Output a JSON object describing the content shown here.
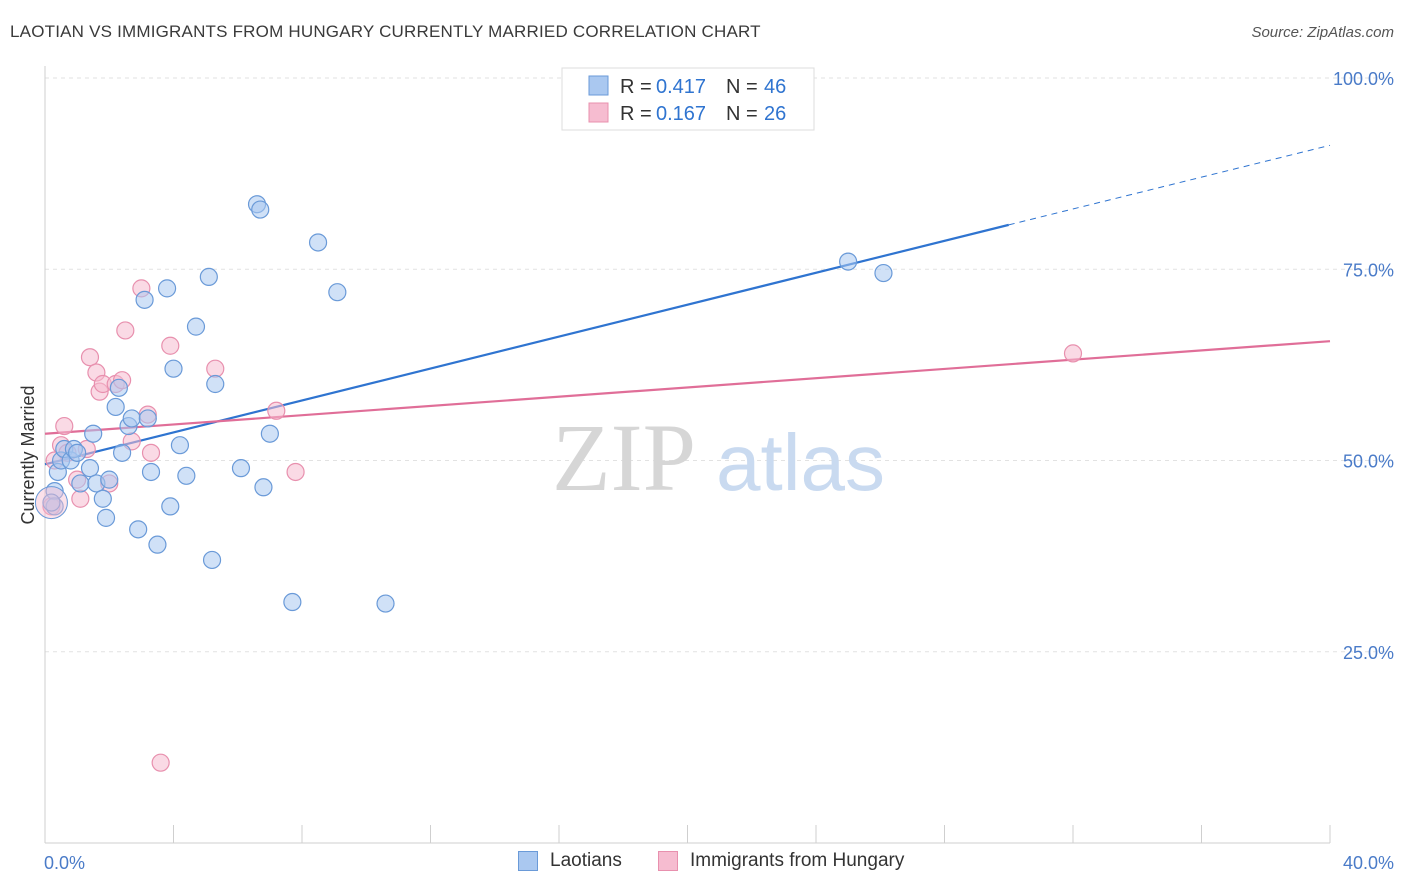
{
  "title": "LAOTIAN VS IMMIGRANTS FROM HUNGARY CURRENTLY MARRIED CORRELATION CHART",
  "source": "Source: ZipAtlas.com",
  "watermark": {
    "zip": "ZIP",
    "atlas": "atlas"
  },
  "colors": {
    "blue_fill": "#aac8f0",
    "blue_stroke": "#6a9ad8",
    "blue_line": "#2f74d0",
    "pink_fill": "#f6bcd0",
    "pink_stroke": "#e890ae",
    "pink_line": "#e06e98",
    "axis_text": "#4a7bc8",
    "grid": "#e2e2e2"
  },
  "legend": [
    {
      "r_label": "R = ",
      "r_value": "0.417",
      "n_label": "N = ",
      "n_value": "46"
    },
    {
      "r_label": "R = ",
      "r_value": "0.167",
      "n_label": "N = ",
      "n_value": "26"
    }
  ],
  "bottom_legend": [
    "Laotians",
    "Immigrants from Hungary"
  ],
  "chart_data": {
    "type": "scatter",
    "title": "LAOTIAN VS IMMIGRANTS FROM HUNGARY CURRENTLY MARRIED CORRELATION CHART",
    "xlabel": "",
    "ylabel": "Currently Married",
    "xlim": [
      0,
      40
    ],
    "ylim": [
      0,
      100
    ],
    "x_tick_labels": [
      "0.0%",
      "40.0%"
    ],
    "y_ticks": [
      25,
      50,
      75,
      100
    ],
    "y_tick_labels": [
      "25.0%",
      "50.0%",
      "75.0%",
      "100.0%"
    ],
    "grid": true,
    "legend_position": "top-center",
    "series": [
      {
        "name": "Laotians",
        "r": 0.417,
        "n": 46,
        "trend": {
          "x0": 0,
          "y0": 49.5,
          "x1": 30,
          "y1": 80.8,
          "dash_to_x": 40,
          "dash_to_y": 91.2
        },
        "points": [
          [
            0.3,
            46
          ],
          [
            0.3,
            44
          ],
          [
            0.4,
            48.5
          ],
          [
            0.5,
            50
          ],
          [
            0.6,
            51.5
          ],
          [
            0.8,
            50
          ],
          [
            0.9,
            51.5
          ],
          [
            1.0,
            51
          ],
          [
            1.1,
            47
          ],
          [
            1.4,
            49
          ],
          [
            1.5,
            53.5
          ],
          [
            1.6,
            47
          ],
          [
            1.8,
            45
          ],
          [
            1.9,
            42.5
          ],
          [
            2.0,
            47.5
          ],
          [
            2.2,
            57
          ],
          [
            2.3,
            59.5
          ],
          [
            2.4,
            51
          ],
          [
            2.6,
            54.5
          ],
          [
            2.7,
            55.5
          ],
          [
            2.9,
            41
          ],
          [
            3.1,
            71
          ],
          [
            3.2,
            55.5
          ],
          [
            3.3,
            48.5
          ],
          [
            3.5,
            39
          ],
          [
            3.8,
            72.5
          ],
          [
            3.9,
            44
          ],
          [
            4.0,
            62
          ],
          [
            4.2,
            52
          ],
          [
            4.4,
            48
          ],
          [
            4.7,
            67.5
          ],
          [
            5.1,
            74
          ],
          [
            5.2,
            37
          ],
          [
            5.3,
            60
          ],
          [
            6.1,
            49
          ],
          [
            6.6,
            83.5
          ],
          [
            6.7,
            82.8
          ],
          [
            6.8,
            46.5
          ],
          [
            7.0,
            53.5
          ],
          [
            7.7,
            31.5
          ],
          [
            8.5,
            78.5
          ],
          [
            9.1,
            72
          ],
          [
            10.6,
            31.3
          ],
          [
            25.0,
            76
          ],
          [
            26.1,
            74.5
          ],
          [
            0.2,
            44.5
          ]
        ]
      },
      {
        "name": "Immigrants from Hungary",
        "r": 0.167,
        "n": 26,
        "trend": {
          "x0": 0,
          "y0": 53.5,
          "x1": 40,
          "y1": 65.6
        },
        "points": [
          [
            0.2,
            44
          ],
          [
            0.3,
            50
          ],
          [
            0.5,
            52
          ],
          [
            0.6,
            54.5
          ],
          [
            0.7,
            51
          ],
          [
            1.0,
            47.5
          ],
          [
            1.1,
            45
          ],
          [
            1.3,
            51.5
          ],
          [
            1.4,
            63.5
          ],
          [
            1.6,
            61.5
          ],
          [
            1.7,
            59
          ],
          [
            1.8,
            60
          ],
          [
            2.0,
            47
          ],
          [
            2.2,
            60
          ],
          [
            2.4,
            60.5
          ],
          [
            2.5,
            67
          ],
          [
            2.7,
            52.5
          ],
          [
            3.0,
            72.5
          ],
          [
            3.2,
            56
          ],
          [
            3.3,
            51
          ],
          [
            3.6,
            10.5
          ],
          [
            3.9,
            65
          ],
          [
            5.3,
            62
          ],
          [
            7.2,
            56.5
          ],
          [
            7.8,
            48.5
          ],
          [
            32.0,
            64
          ]
        ]
      }
    ]
  }
}
